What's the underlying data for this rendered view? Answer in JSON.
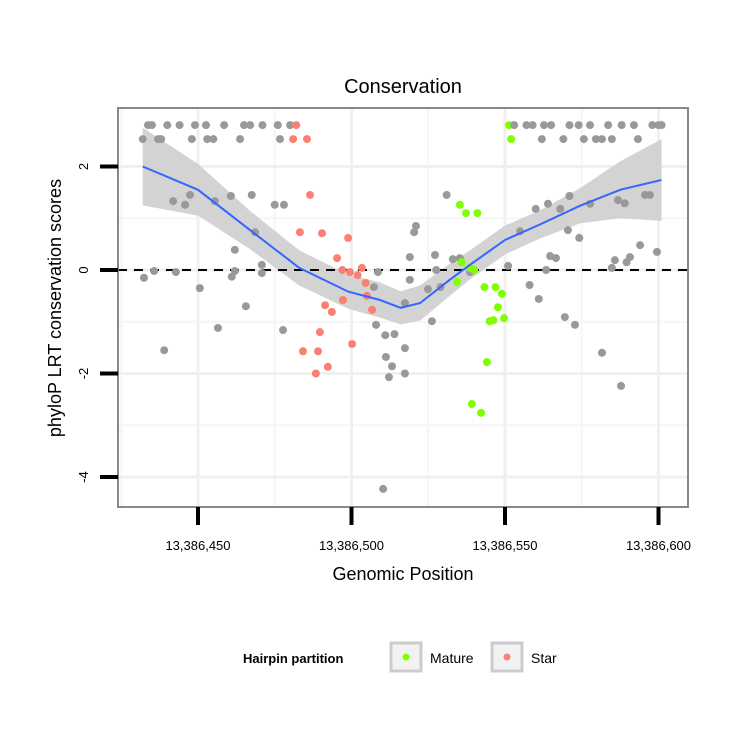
{
  "chart_data": {
    "type": "scatter",
    "title": "Conservation",
    "xlabel": "Genomic Position",
    "ylabel": "phyloP LRT conservation scores",
    "xlim": [
      13386424,
      13386610
    ],
    "ylim": [
      -4.6,
      3.1
    ],
    "x_ticks": [
      13386450,
      13386500,
      13386550,
      13386600
    ],
    "x_tick_labels": [
      "13,386,450",
      "13,386,500",
      "13,386,550",
      "13,386,600"
    ],
    "y_ticks": [
      -4,
      -2,
      0,
      2
    ],
    "y_tick_labels": [
      "-4",
      "-2",
      "0",
      "2"
    ],
    "hline": 0,
    "grid": true,
    "legend": {
      "title": "Hairpin partition",
      "position": "bottom",
      "entries": [
        {
          "label": "Mature",
          "color": "#7FFF00"
        },
        {
          "label": "Star",
          "color": "#FA8072"
        }
      ]
    },
    "colors": {
      "none": "#999999",
      "Mature": "#7FFF00",
      "Star": "#FA8072",
      "smooth": "#3366FF",
      "band": "#D3D3D3"
    },
    "points": [
      [
        13386433.7,
        2.8,
        "none"
      ],
      [
        13386435,
        2.8,
        "none"
      ],
      [
        13386440,
        2.8,
        "none"
      ],
      [
        13386444,
        2.8,
        "none"
      ],
      [
        13386449,
        2.8,
        "none"
      ],
      [
        13386452.6,
        2.8,
        "none"
      ],
      [
        13386458.5,
        2.8,
        "none"
      ],
      [
        13386465,
        2.8,
        "none"
      ],
      [
        13386467,
        2.8,
        "none"
      ],
      [
        13386471,
        2.8,
        "none"
      ],
      [
        13386476,
        2.8,
        "none"
      ],
      [
        13386480,
        2.8,
        "none"
      ],
      [
        13386482,
        2.8,
        "Star"
      ],
      [
        13386432,
        2.53,
        "none"
      ],
      [
        13386437,
        2.53,
        "none"
      ],
      [
        13386438,
        2.53,
        "none"
      ],
      [
        13386448,
        2.53,
        "none"
      ],
      [
        13386453,
        2.53,
        "none"
      ],
      [
        13386455,
        2.53,
        "none"
      ],
      [
        13386463.7,
        2.53,
        "none"
      ],
      [
        13386476.7,
        2.53,
        "none"
      ],
      [
        13386481,
        2.53,
        "Star"
      ],
      [
        13386485.5,
        2.53,
        "Star"
      ],
      [
        13386551.3,
        2.8,
        "Mature"
      ],
      [
        13386553,
        2.8,
        "none"
      ],
      [
        13386557,
        2.8,
        "none"
      ],
      [
        13386559,
        2.8,
        "none"
      ],
      [
        13386562.7,
        2.8,
        "none"
      ],
      [
        13386565,
        2.8,
        "none"
      ],
      [
        13386571,
        2.8,
        "none"
      ],
      [
        13386574,
        2.8,
        "none"
      ],
      [
        13386577.7,
        2.8,
        "none"
      ],
      [
        13386583.6,
        2.8,
        "none"
      ],
      [
        13386588,
        2.8,
        "none"
      ],
      [
        13386592,
        2.8,
        "none"
      ],
      [
        13386598,
        2.8,
        "none"
      ],
      [
        13386600,
        2.8,
        "none"
      ],
      [
        13386601,
        2.8,
        "none"
      ],
      [
        13386552,
        2.53,
        "Mature"
      ],
      [
        13386562,
        2.53,
        "none"
      ],
      [
        13386569,
        2.53,
        "none"
      ],
      [
        13386575.7,
        2.53,
        "none"
      ],
      [
        13386579.6,
        2.53,
        "none"
      ],
      [
        13386581.6,
        2.53,
        "none"
      ],
      [
        13386584.8,
        2.53,
        "none"
      ],
      [
        13386593.3,
        2.53,
        "none"
      ],
      [
        13386432.4,
        -0.15,
        "none"
      ],
      [
        13386435.7,
        -0.02,
        "none"
      ],
      [
        13386441.9,
        1.33,
        "none"
      ],
      [
        13386445.8,
        1.26,
        "none"
      ],
      [
        13386447.4,
        1.45,
        "none"
      ],
      [
        13386442.8,
        -0.04,
        "none"
      ],
      [
        13386450.6,
        -0.35,
        "none"
      ],
      [
        13386455.5,
        1.33,
        "none"
      ],
      [
        13386460.7,
        1.43,
        "none"
      ],
      [
        13386468.6,
        0.73,
        "none"
      ],
      [
        13386467.5,
        1.45,
        "none"
      ],
      [
        13386475,
        1.26,
        "none"
      ],
      [
        13386478,
        1.26,
        "none"
      ],
      [
        13386462,
        -0.02,
        "none"
      ],
      [
        13386461,
        -0.13,
        "none"
      ],
      [
        13386470.8,
        0.1,
        "none"
      ],
      [
        13386470.8,
        -0.06,
        "none"
      ],
      [
        13386465.6,
        -0.7,
        "none"
      ],
      [
        13386456.5,
        -1.12,
        "none"
      ],
      [
        13386439,
        -1.55,
        "none"
      ],
      [
        13386477.7,
        -1.16,
        "none"
      ],
      [
        13386462,
        0.39,
        "none"
      ],
      [
        13386483.2,
        0.73,
        "Star"
      ],
      [
        13386486.5,
        1.45,
        "Star"
      ],
      [
        13386490.4,
        0.71,
        "Star"
      ],
      [
        13386498.9,
        0.62,
        "Star"
      ],
      [
        13386495.3,
        0.23,
        "Star"
      ],
      [
        13386497,
        0,
        "Star"
      ],
      [
        13386499.5,
        -0.04,
        "Star"
      ],
      [
        13386502,
        -0.1,
        "Star"
      ],
      [
        13386503.4,
        0.04,
        "Star"
      ],
      [
        13386504.6,
        -0.25,
        "Star"
      ],
      [
        13386505,
        -0.5,
        "Star"
      ],
      [
        13386497.2,
        -0.58,
        "Star"
      ],
      [
        13386491.4,
        -0.68,
        "Star"
      ],
      [
        13386493.6,
        -0.81,
        "Star"
      ],
      [
        13386489.7,
        -1.2,
        "Star"
      ],
      [
        13386484.2,
        -1.57,
        "Star"
      ],
      [
        13386489.1,
        -1.57,
        "Star"
      ],
      [
        13386500.2,
        -1.43,
        "Star"
      ],
      [
        13386492.3,
        -1.87,
        "Star"
      ],
      [
        13386488.4,
        -2.0,
        "Star"
      ],
      [
        13386506.7,
        -0.77,
        "Star"
      ],
      [
        13386508.6,
        -0.04,
        "none"
      ],
      [
        13386507.3,
        -0.33,
        "none"
      ],
      [
        13386508,
        -1.06,
        "none"
      ],
      [
        13386511,
        -1.26,
        "none"
      ],
      [
        13386514,
        -1.24,
        "none"
      ],
      [
        13386511.2,
        -1.68,
        "none"
      ],
      [
        13386513.2,
        -1.86,
        "none"
      ],
      [
        13386517.4,
        -1.51,
        "none"
      ],
      [
        13386512.2,
        -2.07,
        "none"
      ],
      [
        13386517.4,
        -2.0,
        "none"
      ],
      [
        13386510.3,
        -4.23,
        "none"
      ],
      [
        13386517.4,
        -0.64,
        "none"
      ],
      [
        13386519,
        -0.19,
        "none"
      ],
      [
        13386519,
        0.25,
        "none"
      ],
      [
        13386520.4,
        0.73,
        "none"
      ],
      [
        13386521,
        0.85,
        "none"
      ],
      [
        13386524.9,
        -0.37,
        "none"
      ],
      [
        13386526.2,
        -0.99,
        "none"
      ],
      [
        13386527.2,
        0.29,
        "none"
      ],
      [
        13386531,
        1.45,
        "none"
      ],
      [
        13386533,
        0.21,
        "none"
      ],
      [
        13386527.6,
        0,
        "none"
      ],
      [
        13386529,
        -0.33,
        "none"
      ],
      [
        13386535.3,
        0.23,
        "none"
      ],
      [
        13386538.6,
        -0.04,
        "none"
      ],
      [
        13386535.3,
        1.26,
        "Mature"
      ],
      [
        13386537.3,
        1.1,
        "Mature"
      ],
      [
        13386541,
        1.1,
        "Mature"
      ],
      [
        13386535.9,
        0.15,
        "Mature"
      ],
      [
        13386538.5,
        0.04,
        "Mature"
      ],
      [
        13386540,
        0,
        "Mature"
      ],
      [
        13386534.4,
        -0.23,
        "Mature"
      ],
      [
        13386543.3,
        -0.33,
        "Mature"
      ],
      [
        13386546.9,
        -0.33,
        "Mature"
      ],
      [
        13386549,
        -0.46,
        "Mature"
      ],
      [
        13386545,
        -0.99,
        "Mature"
      ],
      [
        13386546.2,
        -0.97,
        "Mature"
      ],
      [
        13386549.7,
        -0.93,
        "Mature"
      ],
      [
        13386547.7,
        -0.72,
        "Mature"
      ],
      [
        13386544.1,
        -1.78,
        "Mature"
      ],
      [
        13386539.2,
        -2.59,
        "Mature"
      ],
      [
        13386542.2,
        -2.76,
        "Mature"
      ],
      [
        13386554.9,
        0.75,
        "none"
      ],
      [
        13386560,
        1.18,
        "none"
      ],
      [
        13386564,
        1.28,
        "none"
      ],
      [
        13386551,
        0.08,
        "none"
      ],
      [
        13386558,
        -0.29,
        "none"
      ],
      [
        13386561,
        -0.56,
        "none"
      ],
      [
        13386568,
        1.18,
        "none"
      ],
      [
        13386571,
        1.43,
        "none"
      ],
      [
        13386577.7,
        1.28,
        "none"
      ],
      [
        13386570.5,
        0.77,
        "none"
      ],
      [
        13386574.2,
        0.62,
        "none"
      ],
      [
        13386564.7,
        0.27,
        "none"
      ],
      [
        13386566.6,
        0.23,
        "none"
      ],
      [
        13386563.4,
        0,
        "none"
      ],
      [
        13386569.5,
        -0.91,
        "none"
      ],
      [
        13386572.8,
        -1.06,
        "none"
      ],
      [
        13386581.6,
        -1.6,
        "none"
      ],
      [
        13386587.8,
        -2.24,
        "none"
      ],
      [
        13386586.8,
        1.35,
        "none"
      ],
      [
        13386589,
        1.29,
        "none"
      ],
      [
        13386595.6,
        1.45,
        "none"
      ],
      [
        13386597.2,
        1.45,
        "none"
      ],
      [
        13386599.5,
        0.35,
        "none"
      ],
      [
        13386594,
        0.48,
        "none"
      ],
      [
        13386590.7,
        0.25,
        "none"
      ],
      [
        13386585.8,
        0.19,
        "none"
      ],
      [
        13386584.8,
        0.04,
        "none"
      ],
      [
        13386589.6,
        0.15,
        "none"
      ]
    ],
    "smooth": {
      "x": [
        13386432,
        13386450,
        13386467,
        13386483,
        13386499,
        13386509.3,
        13386516,
        13386522.3,
        13386532,
        13386538.6,
        13386550,
        13386561,
        13386574.4,
        13386587.5,
        13386601
      ],
      "y": [
        2.0,
        1.55,
        0.77,
        0.04,
        -0.42,
        -0.58,
        -0.73,
        -0.64,
        -0.19,
        0.1,
        0.58,
        0.87,
        1.24,
        1.55,
        1.74
      ],
      "lower": [
        1.25,
        1.05,
        0.4,
        -0.3,
        -0.75,
        -0.92,
        -1.05,
        -0.98,
        -0.5,
        -0.18,
        0.3,
        0.6,
        0.9,
        1.0,
        0.95
      ],
      "upper": [
        2.75,
        2.05,
        1.14,
        0.38,
        -0.09,
        -0.24,
        -0.41,
        -0.3,
        0.12,
        0.38,
        0.86,
        1.14,
        1.58,
        2.1,
        2.53
      ]
    }
  }
}
